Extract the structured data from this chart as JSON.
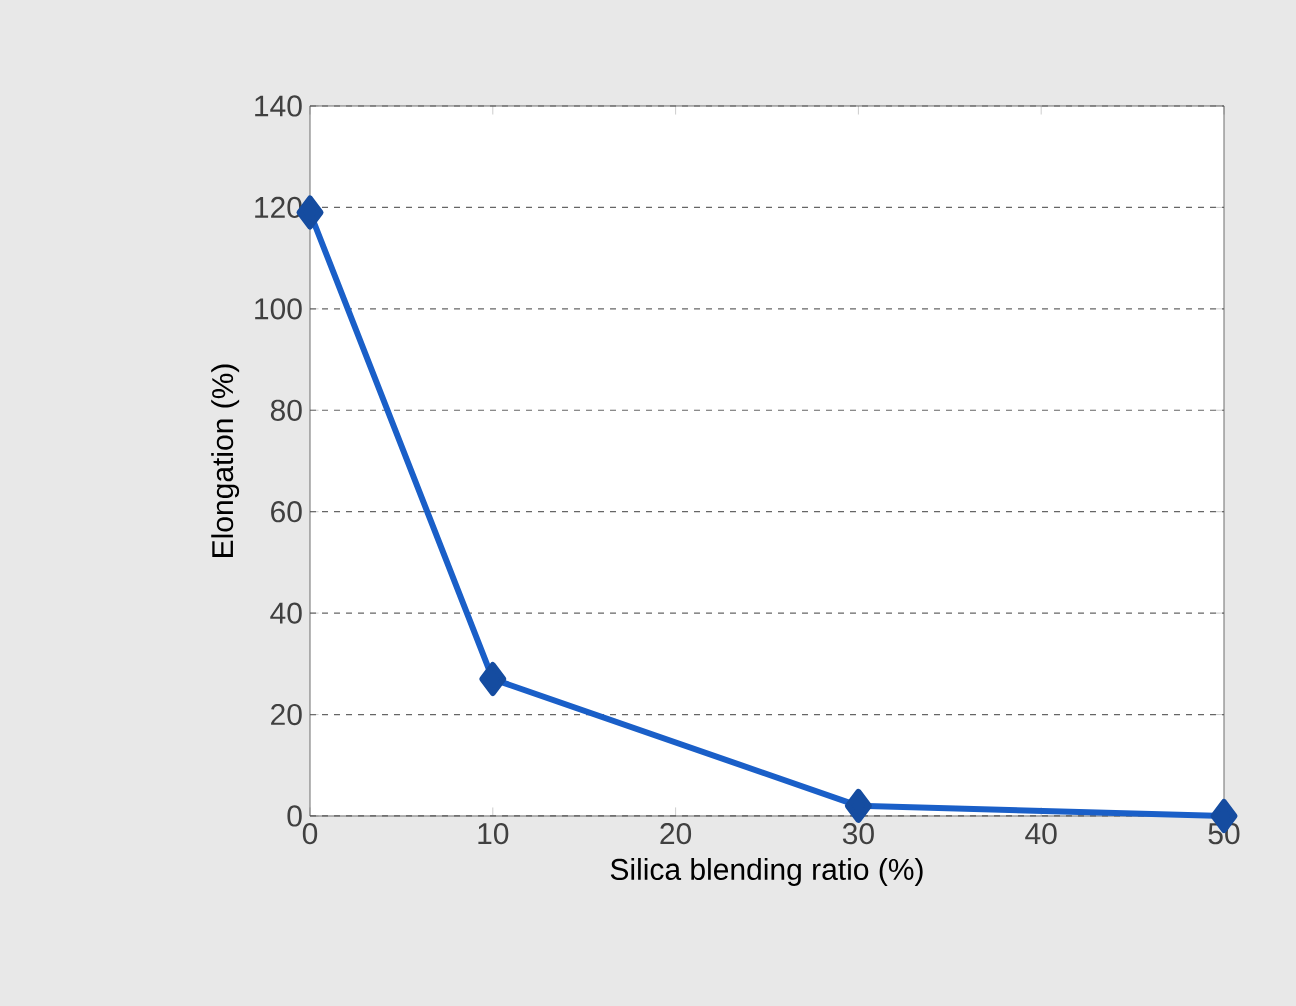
{
  "chart_data": {
    "type": "line",
    "xlabel": "Silica blending ratio (%)",
    "ylabel": "Elongation (%)",
    "x": [
      0,
      10,
      30,
      50
    ],
    "series": [
      {
        "color": "#1a5fc8",
        "values": [
          119,
          27,
          2,
          0
        ]
      }
    ],
    "xlim": [
      0,
      50
    ],
    "xticks": [
      0,
      10,
      20,
      30,
      40,
      50
    ],
    "ylim": [
      0,
      140
    ],
    "yticks": [
      0,
      20,
      40,
      60,
      80,
      100,
      120,
      140
    ],
    "grid": "y",
    "marker": "diamond",
    "line_style": "solid"
  }
}
